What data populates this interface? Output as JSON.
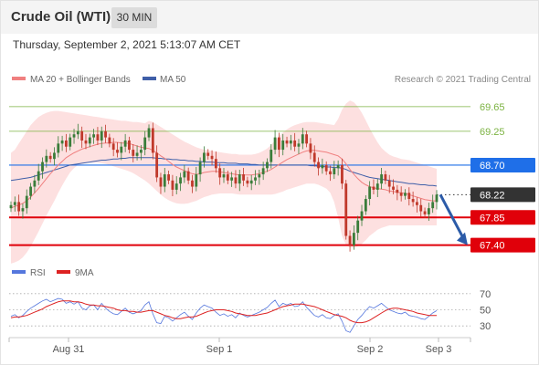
{
  "header": {
    "title": "Crude Oil (WTI)",
    "timeframe": "30 MIN",
    "timestamp": "Thursday, September 2, 2021 5:13:07 AM CET"
  },
  "legend": {
    "ma20_label": "MA 20 + Bollinger Bands",
    "ma50_label": "MA 50",
    "copyright": "Research © 2021 Trading Central",
    "rsi_label": "RSI",
    "ma9_label": "9MA"
  },
  "colors": {
    "ma20": "#f08080",
    "bollinger_fill": "#fde0e0",
    "ma50": "#3f5fa8",
    "up": "#3a7d3a",
    "down": "#c0392b",
    "green_level": "#7cb342",
    "blue_level": "#1f6fe8",
    "current": "#333333",
    "red_level": "#e0000a",
    "arrow": "#2c5ba8",
    "rsi": "#5577dd",
    "rsi_ma": "#dd2222"
  },
  "chart_data": [
    {
      "type": "candlestick",
      "title": "Crude Oil (WTI)",
      "timeframe": "30 MIN",
      "ylim": [
        67.35,
        69.9
      ],
      "x_labels": [
        "Aug 31",
        "Sep 1",
        "Sep 2",
        "Sep 3"
      ],
      "price_levels": [
        {
          "value": 69.65,
          "label": "69.65",
          "style": "green"
        },
        {
          "value": 69.25,
          "label": "69.25",
          "style": "green"
        },
        {
          "value": 68.7,
          "label": "68.70",
          "style": "blue"
        },
        {
          "value": 68.22,
          "label": "68.22",
          "style": "current"
        },
        {
          "value": 67.85,
          "label": "67.85",
          "style": "red"
        },
        {
          "value": 67.4,
          "label": "67.40",
          "style": "red"
        }
      ],
      "forecast_arrow": {
        "from": 68.22,
        "to": 67.4
      },
      "indicators": [
        "MA 20 + Bollinger Bands",
        "MA 50"
      ],
      "close": [
        68.05,
        68.1,
        67.95,
        68.0,
        68.2,
        68.35,
        68.45,
        68.6,
        68.75,
        68.85,
        68.8,
        68.9,
        69.05,
        69.1,
        69.0,
        69.15,
        69.2,
        69.25,
        69.1,
        69.05,
        69.15,
        69.2,
        69.1,
        69.25,
        69.15,
        69.05,
        68.95,
        68.9,
        69.0,
        69.1,
        68.95,
        68.85,
        68.9,
        68.95,
        69.15,
        69.3,
        68.9,
        68.5,
        68.35,
        68.55,
        68.45,
        68.3,
        68.4,
        68.5,
        68.6,
        68.45,
        68.35,
        68.55,
        68.75,
        68.9,
        68.85,
        68.8,
        68.65,
        68.5,
        68.55,
        68.45,
        68.5,
        68.4,
        68.55,
        68.45,
        68.4,
        68.45,
        68.5,
        68.55,
        68.65,
        68.75,
        68.95,
        69.15,
        68.95,
        69.1,
        69.05,
        69.1,
        69.0,
        69.05,
        69.2,
        69.05,
        68.9,
        68.75,
        68.65,
        68.7,
        68.6,
        68.55,
        68.65,
        68.7,
        68.4,
        67.55,
        67.4,
        67.6,
        67.8,
        67.95,
        68.15,
        68.35,
        68.3,
        68.4,
        68.55,
        68.45,
        68.35,
        68.3,
        68.25,
        68.2,
        68.25,
        68.15,
        68.1,
        68.05,
        67.95,
        67.9,
        68.0,
        68.1,
        68.22
      ],
      "ma20": [
        68.0,
        68.03,
        68.05,
        68.08,
        68.12,
        68.18,
        68.25,
        68.32,
        68.4,
        68.48,
        68.56,
        68.63,
        68.7,
        68.76,
        68.82,
        68.86,
        68.9,
        68.93,
        68.96,
        68.98,
        69.0,
        69.02,
        69.04,
        69.05,
        69.06,
        69.06,
        69.07,
        69.07,
        69.06,
        69.06,
        69.05,
        69.03,
        69.01,
        68.99,
        68.98,
        68.97,
        68.94,
        68.9,
        68.85,
        68.81,
        68.76,
        68.71,
        68.67,
        68.64,
        68.61,
        68.58,
        68.56,
        68.55,
        68.56,
        68.58,
        68.59,
        68.6,
        68.6,
        68.59,
        68.58,
        68.57,
        68.56,
        68.55,
        68.54,
        68.54,
        68.54,
        68.54,
        68.55,
        68.56,
        68.58,
        68.6,
        68.63,
        68.67,
        68.71,
        68.75,
        68.79,
        68.82,
        68.85,
        68.88,
        68.91,
        68.93,
        68.94,
        68.94,
        68.93,
        68.92,
        68.91,
        68.89,
        68.87,
        68.85,
        68.8,
        68.72,
        68.63,
        68.55,
        68.48,
        68.42,
        68.38,
        68.35,
        68.33,
        68.32,
        68.31,
        68.3,
        68.28,
        68.27,
        68.26,
        68.25,
        68.24,
        68.22,
        68.2,
        68.18,
        68.16,
        68.14,
        68.13,
        68.12,
        68.12
      ],
      "ma50": [
        68.45,
        68.46,
        68.47,
        68.48,
        68.49,
        68.5,
        68.52,
        68.54,
        68.56,
        68.58,
        68.6,
        68.62,
        68.64,
        68.66,
        68.68,
        68.7,
        68.71,
        68.72,
        68.73,
        68.74,
        68.75,
        68.76,
        68.77,
        68.78,
        68.78,
        68.79,
        68.8,
        68.8,
        68.81,
        68.81,
        68.82,
        68.82,
        68.82,
        68.82,
        68.82,
        68.82,
        68.82,
        68.81,
        68.81,
        68.8,
        68.8,
        68.79,
        68.79,
        68.78,
        68.78,
        68.77,
        68.77,
        68.76,
        68.76,
        68.75,
        68.75,
        68.75,
        68.74,
        68.74,
        68.74,
        68.73,
        68.73,
        68.73,
        68.72,
        68.72,
        68.72,
        68.71,
        68.71,
        68.7,
        68.7,
        68.7,
        68.7,
        68.7,
        68.7,
        68.7,
        68.7,
        68.7,
        68.7,
        68.7,
        68.7,
        68.7,
        68.69,
        68.69,
        68.68,
        68.68,
        68.67,
        68.67,
        68.66,
        68.66,
        68.65,
        68.63,
        68.6,
        68.58,
        68.56,
        68.54,
        68.52,
        68.5,
        68.49,
        68.48,
        68.47,
        68.46,
        68.45,
        68.44,
        68.43,
        68.42,
        68.41,
        68.4,
        68.4,
        68.39,
        68.38,
        68.38,
        68.37,
        68.37,
        68.36
      ],
      "bb_upper": [
        68.9,
        68.95,
        69.05,
        69.15,
        69.25,
        69.35,
        69.42,
        69.48,
        69.52,
        69.55,
        69.57,
        69.58,
        69.58,
        69.57,
        69.56,
        69.55,
        69.54,
        69.53,
        69.52,
        69.51,
        69.5,
        69.49,
        69.48,
        69.47,
        69.46,
        69.45,
        69.44,
        69.43,
        69.42,
        69.42,
        69.41,
        69.4,
        69.4,
        69.39,
        69.38,
        69.42,
        69.4,
        69.36,
        69.32,
        69.28,
        69.24,
        69.2,
        69.16,
        69.12,
        69.08,
        69.05,
        69.02,
        68.99,
        68.97,
        68.95,
        68.94,
        68.93,
        68.92,
        68.91,
        68.9,
        68.89,
        68.88,
        68.88,
        68.87,
        68.87,
        68.87,
        68.87,
        68.88,
        68.9,
        68.93,
        68.97,
        69.03,
        69.1,
        69.17,
        69.23,
        69.28,
        69.32,
        69.35,
        69.37,
        69.39,
        69.4,
        69.4,
        69.4,
        69.39,
        69.38,
        69.37,
        69.36,
        69.35,
        69.45,
        69.6,
        69.7,
        69.75,
        69.72,
        69.65,
        69.55,
        69.43,
        69.3,
        69.18,
        69.07,
        68.98,
        68.92,
        68.87,
        68.84,
        68.82,
        68.8,
        68.79,
        68.78,
        68.76,
        68.74,
        68.72,
        68.7,
        68.68,
        68.66,
        68.64
      ],
      "bb_lower": [
        67.1,
        67.12,
        67.15,
        67.2,
        67.28,
        67.38,
        67.5,
        67.62,
        67.75,
        67.88,
        68.0,
        68.12,
        68.25,
        68.37,
        68.48,
        68.58,
        68.65,
        68.7,
        68.72,
        68.73,
        68.74,
        68.74,
        68.74,
        68.73,
        68.72,
        68.7,
        68.68,
        68.66,
        68.64,
        68.62,
        68.6,
        68.57,
        68.53,
        68.49,
        68.45,
        68.4,
        68.34,
        68.28,
        68.22,
        68.17,
        68.13,
        68.1,
        68.08,
        68.07,
        68.07,
        68.08,
        68.1,
        68.12,
        68.15,
        68.18,
        68.2,
        68.22,
        68.23,
        68.24,
        68.24,
        68.24,
        68.24,
        68.23,
        68.22,
        68.22,
        68.22,
        68.22,
        68.22,
        68.22,
        68.22,
        68.22,
        68.22,
        68.23,
        68.25,
        68.27,
        68.3,
        68.32,
        68.34,
        68.36,
        68.38,
        68.4,
        68.4,
        68.4,
        68.38,
        68.35,
        68.32,
        68.25,
        68.1,
        67.85,
        67.55,
        67.4,
        67.36,
        67.36,
        67.38,
        67.42,
        67.48,
        67.55,
        67.6,
        67.65,
        67.68,
        67.7,
        67.72,
        67.72,
        67.72,
        67.72,
        67.72,
        67.72,
        67.72,
        67.72,
        67.72,
        67.72,
        67.72,
        67.72,
        67.72
      ]
    },
    {
      "type": "line",
      "title": "RSI",
      "ylim": [
        20,
        80
      ],
      "y_ticks": [
        70,
        50,
        30
      ],
      "series": [
        {
          "name": "RSI",
          "values": [
            42,
            44,
            40,
            43,
            48,
            52,
            55,
            58,
            61,
            63,
            60,
            62,
            64,
            63,
            58,
            60,
            57,
            60,
            52,
            50,
            55,
            56,
            50,
            58,
            52,
            48,
            45,
            44,
            48,
            52,
            47,
            45,
            47,
            49,
            56,
            60,
            45,
            34,
            33,
            42,
            40,
            36,
            40,
            44,
            47,
            42,
            38,
            46,
            52,
            56,
            54,
            52,
            47,
            43,
            45,
            42,
            44,
            40,
            46,
            43,
            41,
            43,
            45,
            47,
            50,
            53,
            58,
            62,
            54,
            58,
            56,
            58,
            54,
            55,
            60,
            53,
            48,
            43,
            41,
            44,
            40,
            39,
            43,
            45,
            36,
            24,
            22,
            30,
            38,
            43,
            49,
            54,
            52,
            55,
            58,
            54,
            50,
            48,
            46,
            45,
            47,
            43,
            42,
            41,
            39,
            38,
            42,
            46,
            49
          ]
        },
        {
          "name": "9MA",
          "values": [
            40,
            41,
            41,
            42,
            43,
            45,
            47,
            49,
            51,
            54,
            56,
            58,
            60,
            61,
            61,
            61,
            60,
            60,
            59,
            57,
            56,
            56,
            55,
            55,
            54,
            53,
            52,
            50,
            49,
            49,
            48,
            48,
            47,
            47,
            48,
            49,
            49,
            47,
            45,
            43,
            42,
            40,
            39,
            39,
            40,
            41,
            41,
            42,
            44,
            46,
            48,
            49,
            50,
            50,
            50,
            49,
            48,
            46,
            45,
            44,
            43,
            43,
            43,
            44,
            45,
            46,
            48,
            50,
            52,
            54,
            55,
            56,
            57,
            57,
            57,
            56,
            55,
            54,
            52,
            50,
            48,
            46,
            44,
            43,
            42,
            40,
            37,
            35,
            34,
            34,
            35,
            37,
            40,
            43,
            46,
            49,
            51,
            52,
            52,
            51,
            50,
            49,
            48,
            46,
            45,
            44,
            43,
            43,
            43
          ]
        }
      ]
    }
  ]
}
